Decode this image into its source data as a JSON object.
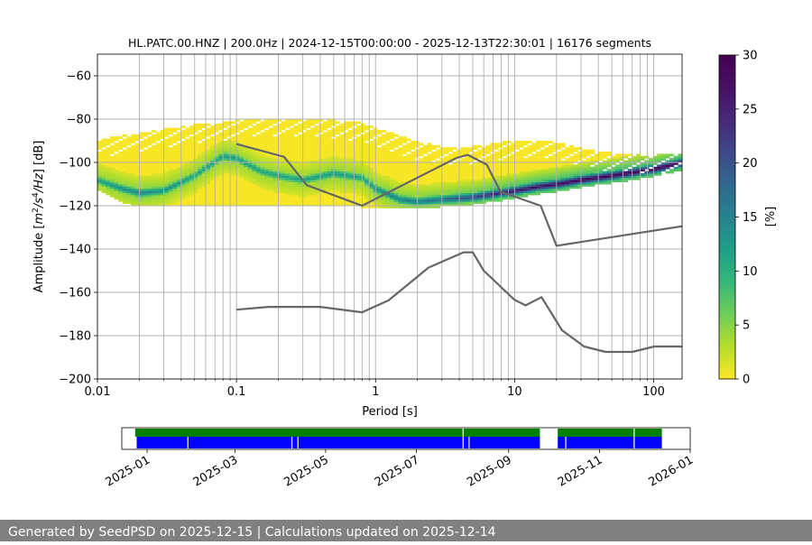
{
  "footer": {
    "text": "Generated by SeedPSD on 2025-12-15 | Calculations updated on 2025-12-14",
    "background": "#808080"
  },
  "chart_data": [
    {
      "type": "heatmap",
      "title": "HL.PATC.00.HNZ | 200.0Hz | 2024-12-15T00:00:00 - 2025-12-13T22:30:01 | 16176 segments",
      "xlabel": "Period [s]",
      "ylabel_parts": [
        "Amplitude [",
        "m",
        "2",
        "/",
        "s",
        "4",
        "/",
        "Hz",
        "] [dB]"
      ],
      "xscale": "log",
      "xlim": [
        0.01,
        160
      ],
      "ylim": [
        -200,
        -50
      ],
      "grid": true,
      "x_ticks": [
        {
          "value": 0.01,
          "label": "0.01"
        },
        {
          "value": 0.1,
          "label": "0.1"
        },
        {
          "value": 1,
          "label": "1"
        },
        {
          "value": 10,
          "label": "10"
        },
        {
          "value": 100,
          "label": "100"
        }
      ],
      "y_ticks": [
        {
          "value": -60,
          "label": "−60"
        },
        {
          "value": -80,
          "label": "−80"
        },
        {
          "value": -100,
          "label": "−100"
        },
        {
          "value": -120,
          "label": "−120"
        },
        {
          "value": -140,
          "label": "−140"
        },
        {
          "value": -160,
          "label": "−160"
        },
        {
          "value": -180,
          "label": "−180"
        },
        {
          "value": -200,
          "label": "−200"
        }
      ],
      "density_band": {
        "description_free": true,
        "x": [
          0.01,
          0.015,
          0.02,
          0.03,
          0.05,
          0.08,
          0.1,
          0.15,
          0.2,
          0.3,
          0.5,
          0.8,
          1,
          1.5,
          2,
          3,
          5,
          8,
          10,
          15,
          20,
          30,
          50,
          80,
          100,
          160
        ],
        "mode_db": [
          -108,
          -112,
          -114,
          -113,
          -106,
          -97,
          -98,
          -104,
          -106,
          -108,
          -105,
          -107,
          -112,
          -117,
          -118,
          -117,
          -116,
          -114,
          -113,
          -111,
          -110,
          -108,
          -106,
          -104,
          -103,
          -100
        ],
        "lower_db": [
          -112,
          -118,
          -120,
          -120,
          -120,
          -120,
          -120,
          -120,
          -120,
          -120,
          -120,
          -120,
          -121,
          -121,
          -121,
          -120,
          -119,
          -117,
          -116,
          -114,
          -113,
          -111,
          -109,
          -107,
          -106,
          -103
        ],
        "upper_db": [
          -90,
          -88,
          -87,
          -85,
          -83,
          -82,
          -81,
          -80,
          -80,
          -80,
          -81,
          -82,
          -85,
          -88,
          -91,
          -93,
          -93,
          -91,
          -90,
          -90,
          -91,
          -94,
          -96,
          -97,
          -97,
          -96
        ],
        "peak_percent": [
          12,
          14,
          15,
          14,
          12,
          13,
          13,
          12,
          12,
          12,
          13,
          12,
          14,
          16,
          16,
          18,
          22,
          26,
          27,
          28,
          29,
          30,
          30,
          30,
          30,
          30
        ]
      },
      "noise_models": {
        "color": "#666666",
        "high": {
          "x": [
            0.1,
            0.22,
            0.32,
            0.8,
            3.8,
            4.6,
            6.3,
            7.9,
            15.4,
            20,
            354.8
          ],
          "db": [
            -91.5,
            -97.4,
            -110.5,
            -120.0,
            -98.0,
            -96.5,
            -101.0,
            -113.5,
            -120.0,
            -138.5,
            -126.0
          ]
        },
        "low": {
          "x": [
            0.1,
            0.17,
            0.4,
            0.8,
            1.24,
            2.4,
            4.3,
            5.0,
            6.0,
            10.0,
            12.0,
            15.6,
            21.9,
            31.6,
            45.0,
            70.0,
            101.0,
            154.0,
            328.0
          ],
          "db": [
            -168.0,
            -166.7,
            -166.7,
            -169.2,
            -163.7,
            -148.6,
            -141.5,
            -141.5,
            -150.0,
            -163.5,
            -166.0,
            -162.2,
            -177.5,
            -185.0,
            -187.5,
            -187.5,
            -185.0,
            -185.0,
            -187.5
          ]
        }
      },
      "colorbar": {
        "label": "[%]",
        "colormap": "viridis_r",
        "range": [
          0,
          30
        ],
        "ticks": [
          0,
          5,
          10,
          15,
          20,
          25,
          30
        ]
      }
    },
    {
      "type": "bar",
      "title": "",
      "x_ticks": [
        "2025-01",
        "2025-03",
        "2025-05",
        "2025-07",
        "2025-09",
        "2025-11",
        "2026-01"
      ],
      "xlim": [
        "2024-12-15",
        "2026-01-01"
      ],
      "series": [
        {
          "color": "#008000",
          "segments": [
            [
              "2024-12-24",
              "2025-09-22"
            ],
            [
              "2025-10-04",
              "2025-12-13"
            ]
          ],
          "gaps": [
            "2025-08-01",
            "2025-09-26",
            "2025-11-24"
          ]
        },
        {
          "color": "#0000ff",
          "segments": [
            [
              "2024-12-25",
              "2025-09-22"
            ],
            [
              "2025-10-04",
              "2025-12-13"
            ]
          ],
          "gaps": [
            "2025-01-28",
            "2025-04-08",
            "2025-04-12",
            "2025-08-01",
            "2025-08-05",
            "2025-09-26",
            "2025-10-09",
            "2025-11-24"
          ]
        }
      ]
    }
  ]
}
